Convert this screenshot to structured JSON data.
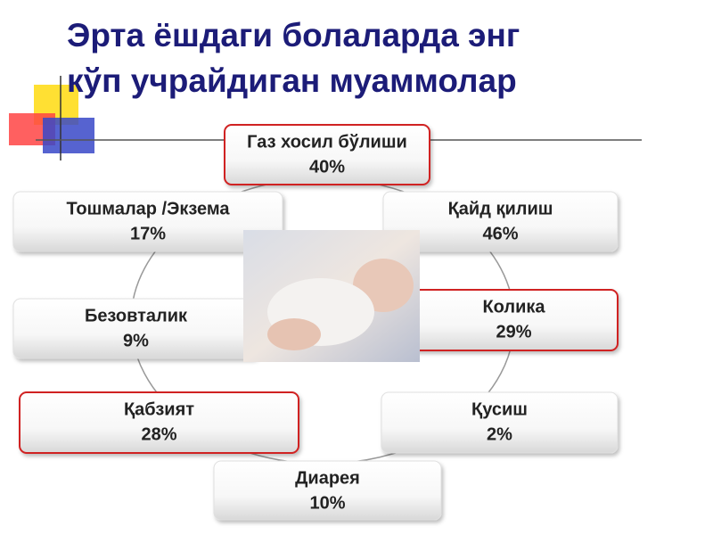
{
  "header": {
    "title": [
      "Эрта ёшдаги болаларда энг",
      "кўп учрайдиган муаммолар"
    ]
  },
  "nodes": [
    {
      "label": "Газ хосил бўлиши",
      "value": "40%"
    },
    {
      "label": "Тошмалар /Экзема",
      "value": "17%"
    },
    {
      "label": "Қайд қилиш",
      "value": "46%"
    },
    {
      "label": "Безовталик",
      "value": "9%"
    },
    {
      "label": "Колика",
      "value": "29%"
    },
    {
      "label": "Қабзият",
      "value": "28%"
    },
    {
      "label": "Қусиш",
      "value": "2%"
    },
    {
      "label": "Диарея",
      "value": "10%"
    }
  ]
}
